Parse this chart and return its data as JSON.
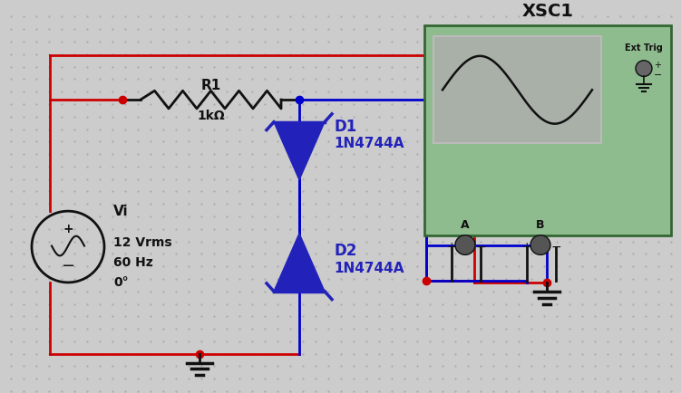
{
  "bg_color": "#cccccc",
  "dot_color": "#aaaaaa",
  "wire_red": "#cc0000",
  "wire_blue": "#0000cc",
  "wire_black": "#111111",
  "text_blue": "#2222bb",
  "text_black": "#111111",
  "scope_bg": "#8fbc8f",
  "scope_screen_bg": "#a8b8a8",
  "title": "XSC1",
  "R1_label": "R1",
  "R1_val": "1kΩ",
  "Vi_label": "Vi",
  "source_label1": "12 Vrms",
  "source_label2": "60 Hz",
  "source_label3": "0°",
  "D1_label": "D1",
  "D1_val": "1N4744A",
  "D2_label": "D2",
  "D2_val": "1N4744A",
  "ext_trig": "Ext Trig",
  "A_label": "A",
  "B_label": "B",
  "lw": 2.0
}
